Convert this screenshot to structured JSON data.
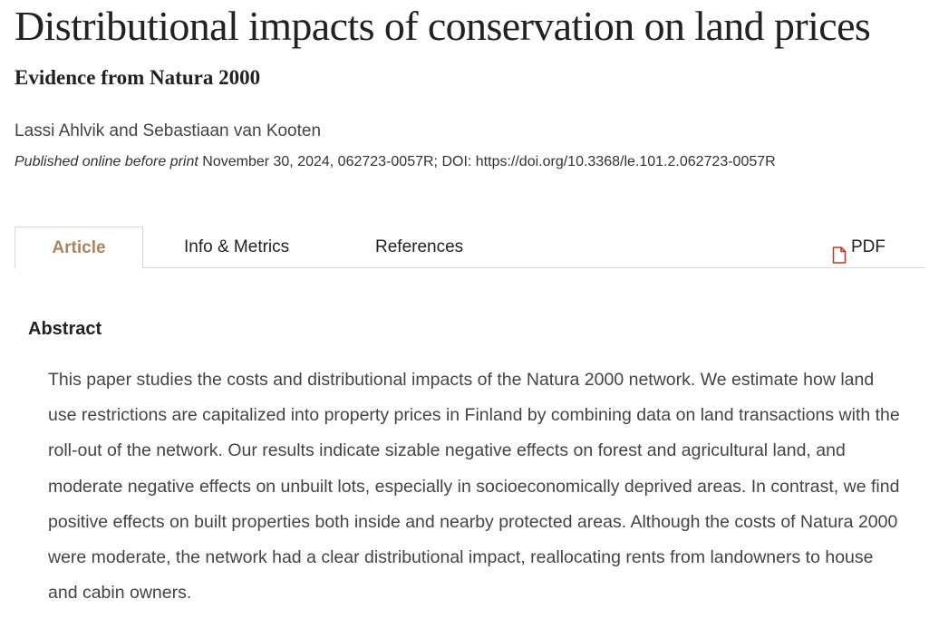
{
  "article": {
    "title": "Distributional impacts of conservation on land prices",
    "subtitle": "Evidence from Natura 2000",
    "authors": [
      "Lassi Ahlvik",
      "Sebastiaan van Kooten"
    ],
    "author_separator": " and ",
    "publication": {
      "prefix": "Published online before print",
      "details": " November 30, 2024, 062723-0057R; DOI: https://doi.org/10.3368/le.101.2.062723-0057R"
    }
  },
  "tabs": [
    {
      "label": "Article",
      "active": true
    },
    {
      "label": "Info & Metrics",
      "active": false
    },
    {
      "label": "References",
      "active": false
    }
  ],
  "pdf": {
    "label": "PDF",
    "icon": "pdf-file-icon"
  },
  "abstract": {
    "heading": "Abstract",
    "text": "This paper studies the costs and distributional impacts of the Natura 2000 network. We estimate how land use restrictions are capitalized into property prices in Finland by combining data on land transactions with the roll-out of the network. Our results indicate sizable negative effects on forest and agricultural land, and moderate negative effects on unbuilt lots, especially in socioeconomically deprived areas. In contrast, we find positive effects on built properties both inside and nearby protected areas. Although the costs of Natura 2000 were moderate, the network had a clear distributional impact, reallocating rents from landowners to house and cabin owners."
  },
  "colors": {
    "accent": "#a8865e",
    "text": "#222222",
    "muted_text": "#444444",
    "border": "#d7d7d7",
    "pdf_icon": "#c0392b"
  }
}
